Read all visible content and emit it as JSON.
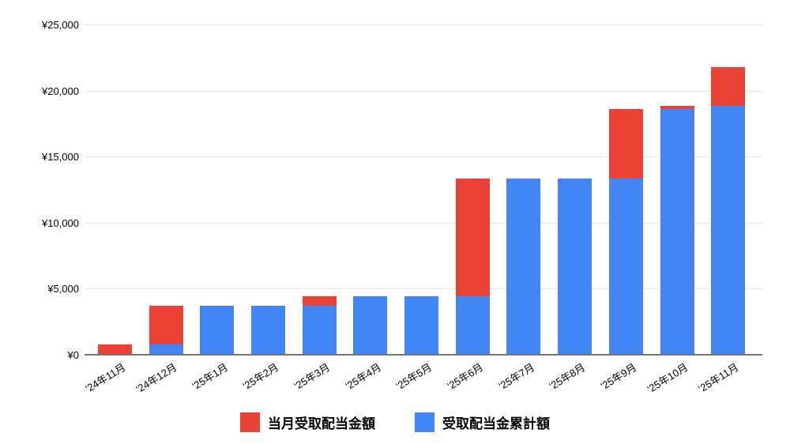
{
  "chart_data": {
    "type": "bar",
    "stacked": true,
    "title": "",
    "xlabel": "",
    "ylabel": "",
    "categories": [
      "'24年11月",
      "'24年12月",
      "'25年1月",
      "'25年2月",
      "'25年3月",
      "'25年4月",
      "'25年5月",
      "'25年6月",
      "'25年7月",
      "'25年8月",
      "'25年9月",
      "'25年10月",
      "'25年11月"
    ],
    "series": [
      {
        "name": "当月受取配当金額",
        "color": "#EA4335",
        "stack_position": "top",
        "values": [
          800,
          2900,
          0,
          0,
          750,
          0,
          0,
          8900,
          0,
          0,
          5250,
          250,
          2900
        ]
      },
      {
        "name": "受取配当金累計額",
        "color": "#4285F4",
        "stack_position": "bottom",
        "values": [
          0,
          800,
          3700,
          3700,
          3700,
          4450,
          4450,
          4450,
          13350,
          13350,
          13350,
          18600,
          18850
        ]
      }
    ],
    "stacked_totals": [
      800,
      3700,
      3700,
      3700,
      4450,
      4450,
      4450,
      13350,
      13350,
      13350,
      18600,
      18850,
      21750
    ],
    "ylim": [
      0,
      25000
    ],
    "ytick_step": 5000,
    "yticks": [
      {
        "value": 0,
        "label": "¥0"
      },
      {
        "value": 5000,
        "label": "¥5,000"
      },
      {
        "value": 10000,
        "label": "¥10,000"
      },
      {
        "value": 15000,
        "label": "¥15,000"
      },
      {
        "value": 20000,
        "label": "¥20,000"
      },
      {
        "value": 25000,
        "label": "¥25,000"
      }
    ],
    "grid": true,
    "legend_position": "bottom",
    "colors": {
      "background": "#ffffff",
      "gridline": "#e6e6e6",
      "axis": "#757575",
      "label": "#000000"
    }
  }
}
